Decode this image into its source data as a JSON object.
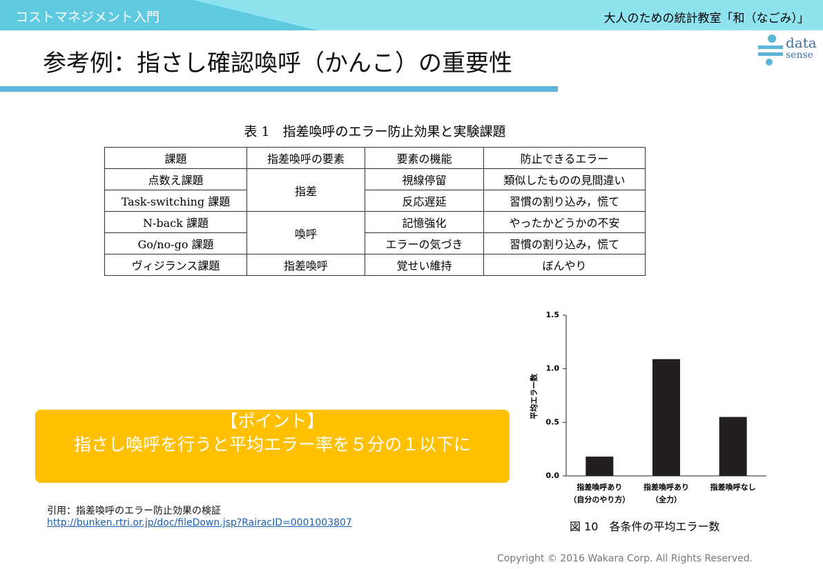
{
  "header": {
    "course": "コストマネジメント入門",
    "school": "大人のための統計教室「和（なごみ）」",
    "title": "参考例：指さし確認喚呼（かんこ）の重要性",
    "logo": [
      "data",
      "sense"
    ]
  },
  "table": {
    "caption": "表 1　指差喚呼のエラー防止効果と実験課題",
    "header": [
      "課題",
      "指差喚呼の要素",
      "要素の機能",
      "防止できるエラー"
    ],
    "rows": [
      [
        "点数え課題",
        "指差",
        "視線停留",
        "類似したものの見間違い"
      ],
      [
        "Task-switching 課題",
        "反応遅延",
        "習慣の割り込み，慌て"
      ],
      [
        "N-back 課題",
        "喚呼",
        "記憶強化",
        "やったかどうかの不安"
      ],
      [
        "Go/no-go 課題",
        "エラーの気づき",
        "習慣の割り込み，慌て"
      ],
      [
        "ヴィジランス課題",
        "指差喚呼",
        "覚せい維持",
        "ぼんやり"
      ]
    ]
  },
  "point": {
    "heading": "【ポイント】",
    "text": "指さし喚呼を行うと平均エラー率を５分の１以下に"
  },
  "citation": {
    "text": "引用：指差喚呼のエラー防止効果の検証",
    "url": "http://bunken.rtri.or.jp/doc/fileDown.jsp?RairacID=0001003807"
  },
  "copyright": "Copyright © 2016 Wakara Corp. All Rights Reserved.",
  "chart_data": {
    "type": "bar",
    "caption": "図 10　各条件の平均エラー数",
    "y_label": "平均エラー数",
    "categories": [
      "指差喚呼あり\n（自分のやり方）",
      "指差喚呼あり\n（全力）",
      "指差喚呼なし"
    ],
    "values": [
      0.18,
      1.09,
      0.55
    ],
    "color": "#231f20",
    "ylim": [
      0,
      1.5
    ],
    "yticks": [
      {
        "value": 0,
        "label": "0.0"
      },
      0.5,
      {
        "value": 1,
        "label": "1.0"
      },
      1.5
    ]
  }
}
